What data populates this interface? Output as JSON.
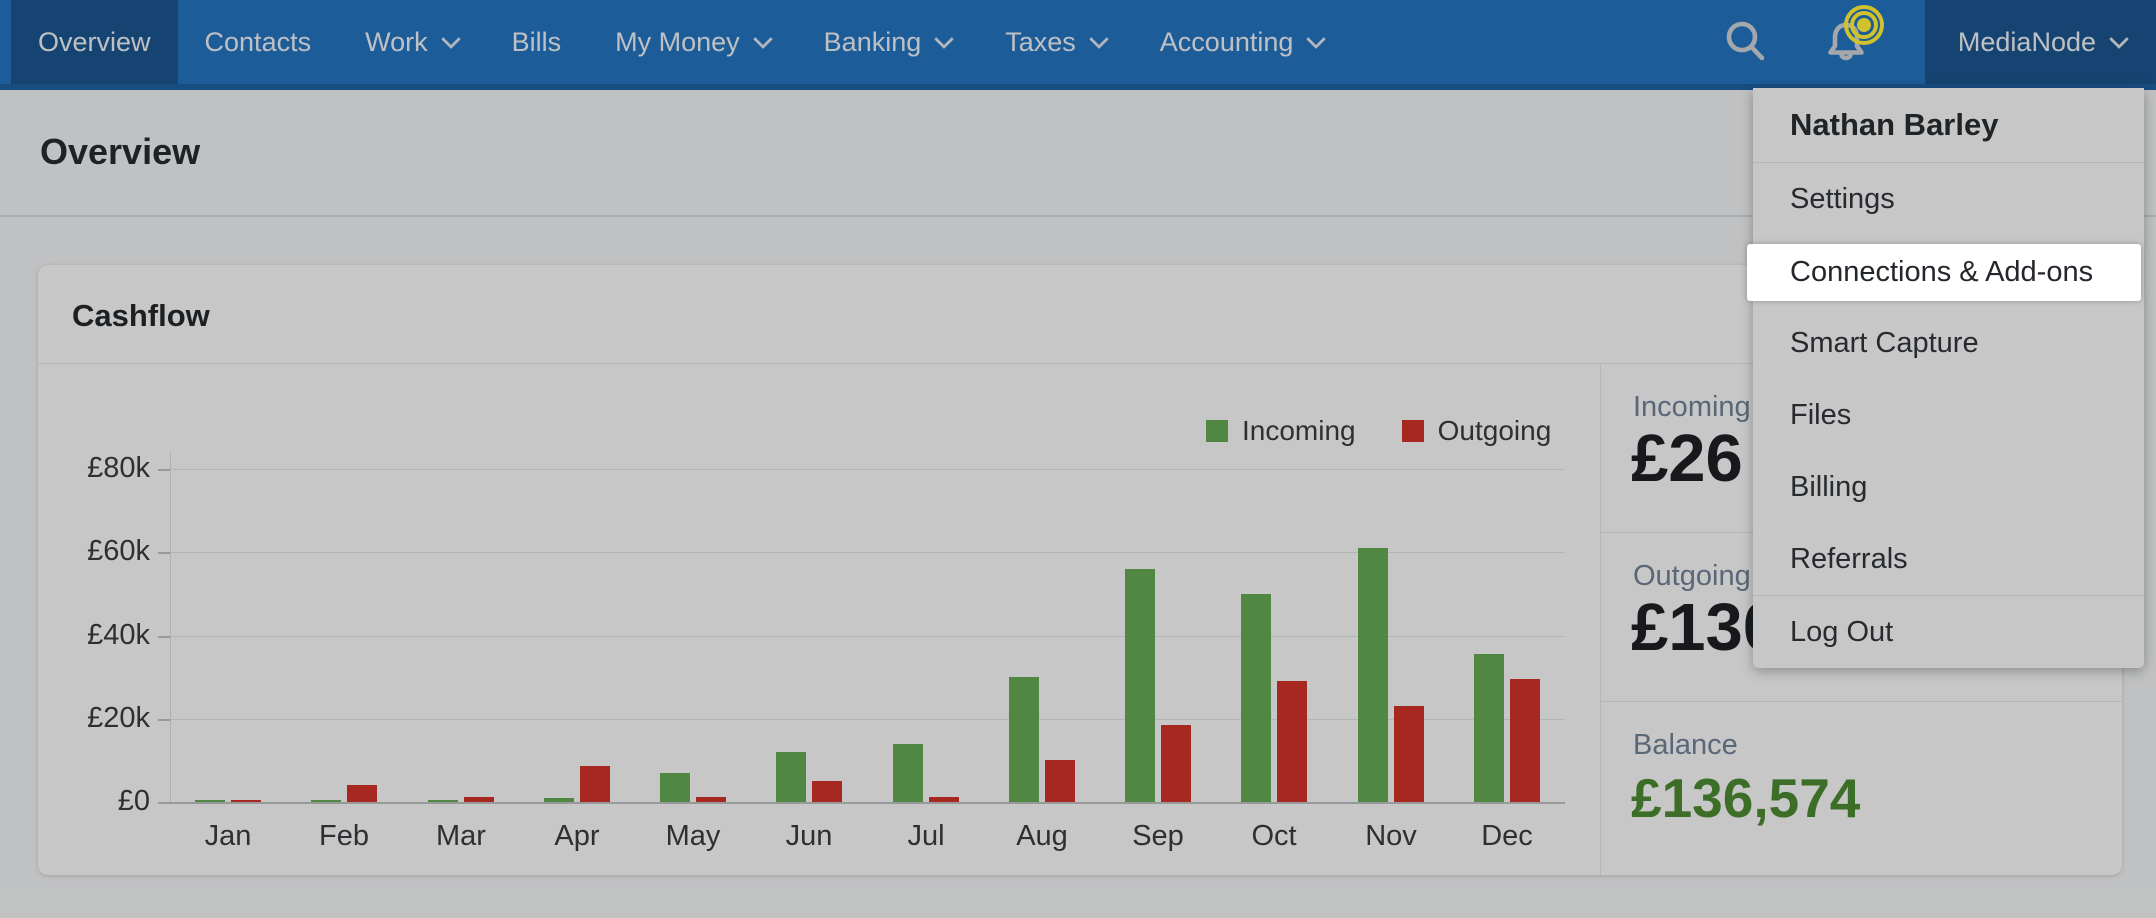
{
  "nav": {
    "items": [
      {
        "label": "Overview",
        "active": true,
        "has_dropdown": false
      },
      {
        "label": "Contacts",
        "active": false,
        "has_dropdown": false
      },
      {
        "label": "Work",
        "active": false,
        "has_dropdown": true
      },
      {
        "label": "Bills",
        "active": false,
        "has_dropdown": false
      },
      {
        "label": "My Money",
        "active": false,
        "has_dropdown": true
      },
      {
        "label": "Banking",
        "active": false,
        "has_dropdown": true
      },
      {
        "label": "Taxes",
        "active": false,
        "has_dropdown": true
      },
      {
        "label": "Accounting",
        "active": false,
        "has_dropdown": true
      }
    ],
    "icons": [
      "search",
      "notifications"
    ],
    "account_label": "MediaNode"
  },
  "page": {
    "title": "Overview"
  },
  "card": {
    "title": "Cashflow"
  },
  "chart_data": {
    "type": "bar",
    "title": "Cashflow",
    "categories": [
      "Jan",
      "Feb",
      "Mar",
      "Apr",
      "May",
      "Jun",
      "Jul",
      "Aug",
      "Sep",
      "Oct",
      "Nov",
      "Dec"
    ],
    "series": [
      {
        "name": "Incoming",
        "color": "#66ae56",
        "values": [
          300,
          300,
          400,
          1000,
          7000,
          12000,
          14000,
          30000,
          56000,
          50000,
          61000,
          35500
        ]
      },
      {
        "name": "Outgoing",
        "color": "#d6342a",
        "values": [
          500,
          4200,
          1300,
          8700,
          1300,
          5000,
          1200,
          10000,
          18500,
          29000,
          23000,
          29500
        ]
      }
    ],
    "ylabel": "",
    "xlabel": "",
    "ylim": [
      0,
      80000
    ],
    "yticks": [
      {
        "value": 0,
        "label": "£0"
      },
      {
        "value": 20000,
        "label": "£20k"
      },
      {
        "value": 40000,
        "label": "£40k"
      },
      {
        "value": 60000,
        "label": "£60k"
      },
      {
        "value": 80000,
        "label": "£80k"
      }
    ],
    "grid": true,
    "legend_position": "top-right"
  },
  "stats": {
    "incoming": {
      "label": "Incoming",
      "value": "£26"
    },
    "outgoing": {
      "label": "Outgoing",
      "value": "£130"
    },
    "balance": {
      "label": "Balance",
      "value": "£136,574"
    }
  },
  "user_menu": {
    "name": "Nathan Barley",
    "items": [
      {
        "label": "Settings"
      },
      {
        "label": "Connections & Add-ons",
        "highlighted": true
      },
      {
        "label": "Smart Capture"
      },
      {
        "label": "Files"
      },
      {
        "label": "Billing"
      },
      {
        "label": "Referrals"
      },
      {
        "label": "Log Out"
      }
    ],
    "highlighted_item": "Connections & Add-ons"
  },
  "colors": {
    "nav_blue": "#2577c5",
    "incoming_green": "#66ae56",
    "outgoing_red": "#d6342a",
    "balance_green": "#4e8e33",
    "hotspot_yellow": "#cfc22d",
    "dim_overlay": "rgba(0,0,0,0.22)"
  }
}
